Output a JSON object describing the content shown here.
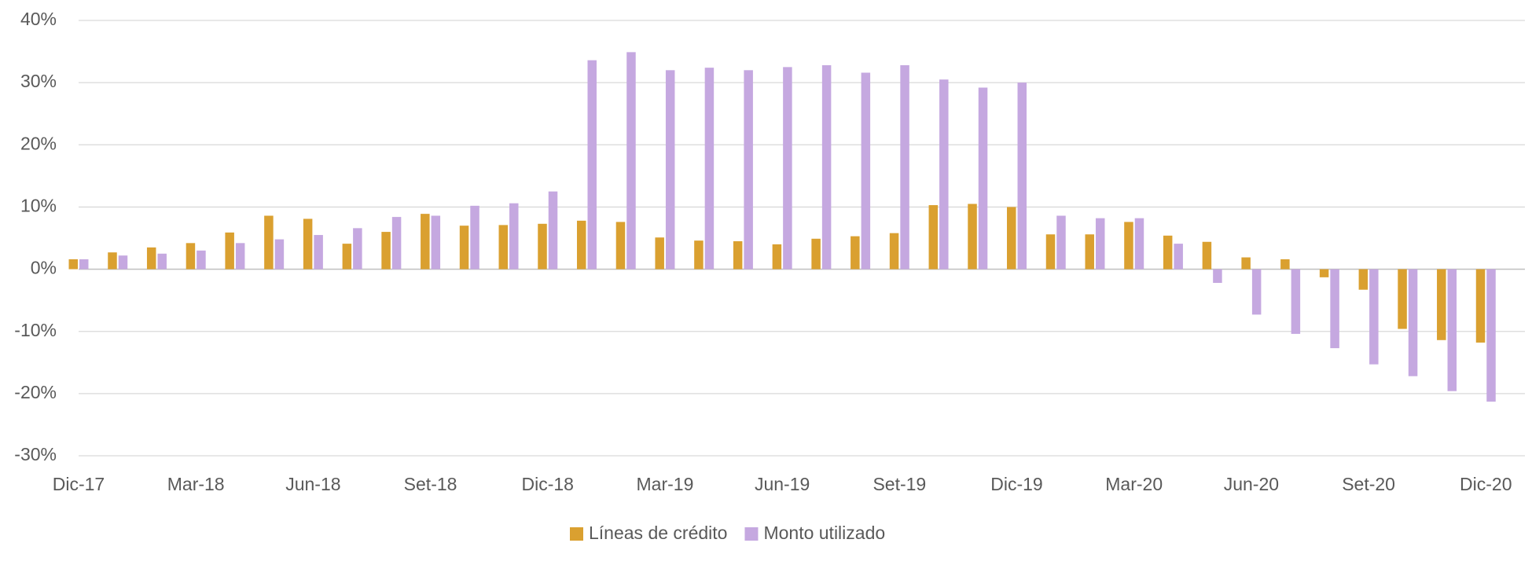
{
  "chart_data": {
    "type": "bar",
    "categories": [
      "Dic-17",
      null,
      null,
      "Mar-18",
      null,
      null,
      "Jun-18",
      null,
      null,
      "Set-18",
      null,
      null,
      "Dic-18",
      null,
      null,
      "Mar-19",
      null,
      null,
      "Jun-19",
      null,
      null,
      "Set-19",
      null,
      null,
      "Dic-19",
      null,
      null,
      "Mar-20",
      null,
      null,
      "Jun-20",
      null,
      null,
      "Set-20",
      null,
      null,
      "Dic-20"
    ],
    "series": [
      {
        "name": "Líneas de crédito",
        "color": "#daa030",
        "values": [
          1.6,
          2.7,
          3.5,
          4.2,
          5.9,
          8.6,
          8.1,
          4.1,
          6.0,
          8.9,
          7.0,
          7.1,
          7.3,
          7.8,
          7.6,
          5.1,
          4.6,
          4.5,
          4.0,
          4.9,
          5.3,
          5.8,
          10.3,
          10.5,
          10.0,
          5.6,
          5.6,
          7.6,
          5.4,
          4.4,
          1.9,
          1.6,
          -1.3,
          -3.3,
          -9.6,
          -11.4,
          -11.8
        ]
      },
      {
        "name": "Monto utilizado",
        "color": "#c5a8e0",
        "values": [
          1.6,
          2.2,
          2.5,
          3.0,
          4.2,
          4.8,
          5.5,
          6.6,
          8.4,
          8.6,
          10.2,
          10.6,
          12.5,
          33.6,
          34.9,
          32.0,
          32.4,
          32.0,
          32.5,
          32.8,
          31.6,
          32.8,
          30.5,
          29.2,
          30.0,
          8.6,
          8.2,
          8.2,
          4.1,
          -2.2,
          -7.3,
          -10.4,
          -12.7,
          -15.3,
          -17.2,
          -19.6,
          -21.3
        ]
      }
    ],
    "ylim": [
      -30,
      40
    ],
    "yticks": [
      {
        "value": -30,
        "label": "-30%"
      },
      {
        "value": -20,
        "label": "-20%"
      },
      {
        "value": -10,
        "label": "-10%"
      },
      {
        "value": 0,
        "label": "0%"
      },
      {
        "value": 10,
        "label": "10%"
      },
      {
        "value": 20,
        "label": "20%"
      },
      {
        "value": 30,
        "label": "30%"
      },
      {
        "value": 40,
        "label": "40%"
      }
    ],
    "grid": true,
    "legend": "bottom"
  }
}
